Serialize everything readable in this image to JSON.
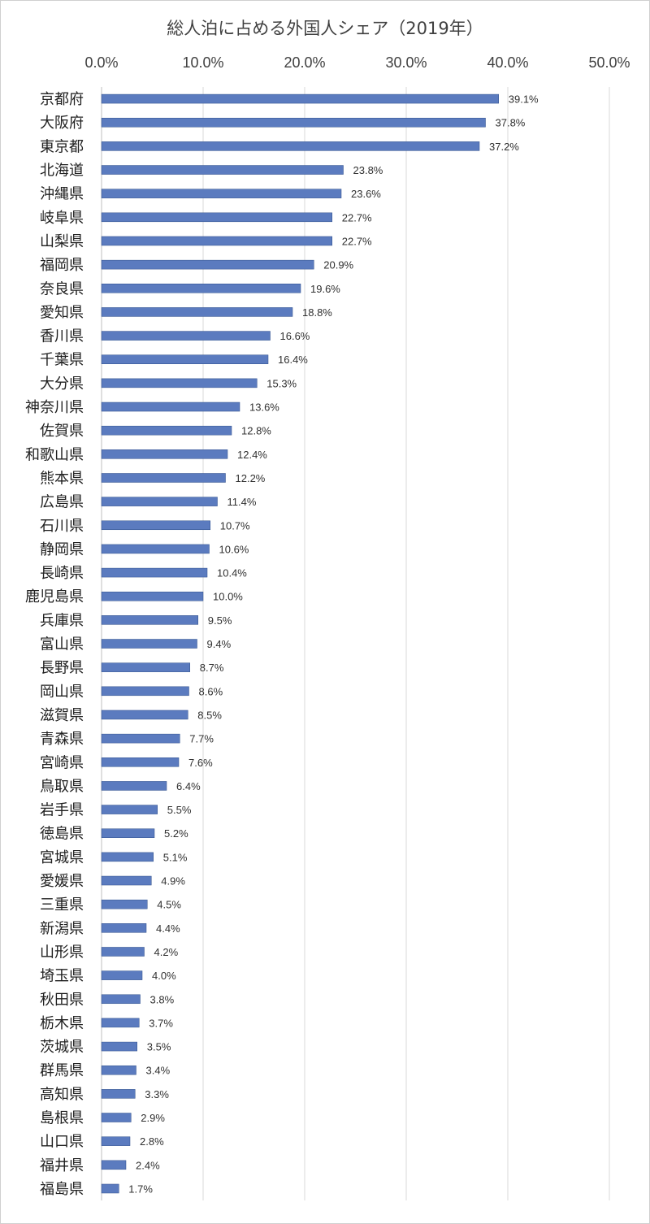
{
  "chart_data": {
    "type": "bar",
    "orientation": "horizontal",
    "title": "総人泊に占める外国人シェア（2019年）",
    "xlabel": "",
    "ylabel": "",
    "xlim": [
      0,
      50
    ],
    "x_ticks": [
      "0.0%",
      "10.0%",
      "20.0%",
      "30.0%",
      "40.0%",
      "50.0%"
    ],
    "x_tick_values": [
      0,
      10,
      20,
      30,
      40,
      50
    ],
    "x_axis_position": "top",
    "grid": true,
    "legend": "none",
    "bar_color": "#5b7bbf",
    "categories": [
      "京都府",
      "大阪府",
      "東京都",
      "北海道",
      "沖縄県",
      "岐阜県",
      "山梨県",
      "福岡県",
      "奈良県",
      "愛知県",
      "香川県",
      "千葉県",
      "大分県",
      "神奈川県",
      "佐賀県",
      "和歌山県",
      "熊本県",
      "広島県",
      "石川県",
      "静岡県",
      "長崎県",
      "鹿児島県",
      "兵庫県",
      "富山県",
      "長野県",
      "岡山県",
      "滋賀県",
      "青森県",
      "宮崎県",
      "鳥取県",
      "岩手県",
      "徳島県",
      "宮城県",
      "愛媛県",
      "三重県",
      "新潟県",
      "山形県",
      "埼玉県",
      "秋田県",
      "栃木県",
      "茨城県",
      "群馬県",
      "高知県",
      "島根県",
      "山口県",
      "福井県",
      "福島県"
    ],
    "values": [
      39.1,
      37.8,
      37.2,
      23.8,
      23.6,
      22.7,
      22.7,
      20.9,
      19.6,
      18.8,
      16.6,
      16.4,
      15.3,
      13.6,
      12.8,
      12.4,
      12.2,
      11.4,
      10.7,
      10.6,
      10.4,
      10.0,
      9.5,
      9.4,
      8.7,
      8.6,
      8.5,
      7.7,
      7.6,
      6.4,
      5.5,
      5.2,
      5.1,
      4.9,
      4.5,
      4.4,
      4.2,
      4.0,
      3.8,
      3.7,
      3.5,
      3.4,
      3.3,
      2.9,
      2.8,
      2.4,
      1.7
    ],
    "data_labels": [
      "39.1%",
      "37.8%",
      "37.2%",
      "23.8%",
      "23.6%",
      "22.7%",
      "22.7%",
      "20.9%",
      "19.6%",
      "18.8%",
      "16.6%",
      "16.4%",
      "15.3%",
      "13.6%",
      "12.8%",
      "12.4%",
      "12.2%",
      "11.4%",
      "10.7%",
      "10.6%",
      "10.4%",
      "10.0%",
      "9.5%",
      "9.4%",
      "8.7%",
      "8.6%",
      "8.5%",
      "7.7%",
      "7.6%",
      "6.4%",
      "5.5%",
      "5.2%",
      "5.1%",
      "4.9%",
      "4.5%",
      "4.4%",
      "4.2%",
      "4.0%",
      "3.8%",
      "3.7%",
      "3.5%",
      "3.4%",
      "3.3%",
      "2.9%",
      "2.8%",
      "2.4%",
      "1.7%"
    ]
  }
}
